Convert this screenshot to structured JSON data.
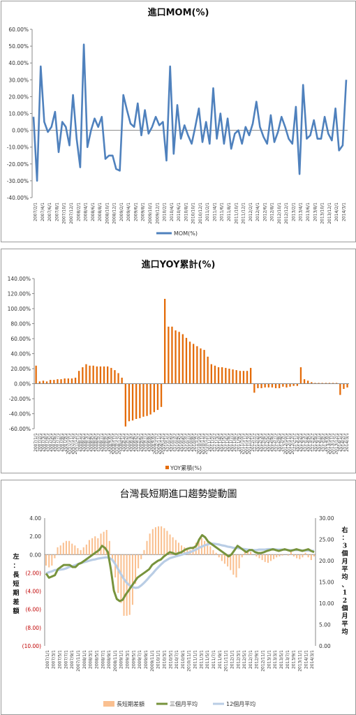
{
  "chart_data": [
    {
      "type": "line",
      "title": "進口MOM(%)",
      "ylim": [
        -40,
        60
      ],
      "y_ticks": [
        "60.00%",
        "50.00%",
        "40.00%",
        "30.00%",
        "20.00%",
        "10.00%",
        "0.00%",
        "-10.00%",
        "-20.00%",
        "-30.00%",
        "-40.00%"
      ],
      "x_tick_labels": [
        "2007/2/1",
        "2007/4/1",
        "2007/6/1",
        "2007/8/1",
        "2007/10/1",
        "2007/12/1",
        "2008/2/1",
        "2008/4/1",
        "2008/6/1",
        "2008/8/1",
        "2008/10/1",
        "2008/12/1",
        "2009/2/1",
        "2009/4/1",
        "2009/6/1",
        "2009/8/1",
        "2009/10/1",
        "2009/12/1",
        "2010/2/1",
        "2010/4/1",
        "2010/6/1",
        "2010/8/1",
        "2010/10/1",
        "2010/12/1",
        "2011/2/1",
        "2011/4/1",
        "2011/6/1",
        "2011/8/1",
        "2011/10/1",
        "2011/12/1",
        "2012/2/1",
        "2012/4/1",
        "2012/6/1",
        "2012/8/1",
        "2012/10/1",
        "2012/12/1",
        "2013/2/1",
        "2013/4/1",
        "2013/6/1",
        "2013/8/1",
        "2013/10/1",
        "2013/12/1",
        "2014/2/1",
        "2014/3/1"
      ],
      "legend_position": "bottom",
      "series": [
        {
          "name": "MOM(%)",
          "color": "#4f81bd",
          "values": [
            8,
            -30,
            38,
            5,
            -1,
            2,
            11,
            -13,
            5,
            2,
            -9,
            21,
            -5,
            -22,
            51,
            -10,
            0,
            7,
            2,
            8,
            -17,
            -15,
            -15,
            -23,
            -24,
            21,
            12,
            4,
            2,
            16,
            -3,
            12,
            -2,
            2,
            8,
            3,
            5,
            -18,
            38,
            -14,
            15,
            -5,
            3,
            -3,
            -8,
            2,
            13,
            -7,
            5,
            -8,
            25,
            -5,
            10,
            -8,
            7,
            -11,
            -2,
            0,
            -8,
            2,
            -3,
            4,
            17,
            2,
            -4,
            -8,
            9,
            -7,
            -1,
            8,
            2,
            -5,
            -8,
            14,
            -26,
            27,
            -5,
            -3,
            6,
            -5,
            -5,
            8,
            -2,
            -6,
            13,
            -12,
            -9,
            30
          ]
        }
      ]
    },
    {
      "type": "bar",
      "title": "進口YOY累計(%)",
      "ylim": [
        -60,
        140
      ],
      "y_ticks": [
        "140.00%",
        "120.00%",
        "100.00%",
        "80.00%",
        "60.00%",
        "40.00%",
        "20.00%",
        "0.00%",
        "-20.00%",
        "-40.00%",
        "-60.00%"
      ],
      "x_tick_labels": [
        "2007/1/1",
        "2007/2/1",
        "2007/3/1",
        "2007/4/1",
        "2007/5/1",
        "2007/6/1",
        "2007/7/1",
        "2007/8/1",
        "2007/9/1",
        "2007/10/1",
        "2007/11/1",
        "2007/12/1",
        "2008/1/1",
        "2008/2/1",
        "2008/3/1",
        "2008/4/1",
        "2008/5/1",
        "2008/6/1",
        "2008/7/1",
        "2008/8/1",
        "2008/9/1",
        "2008/10/1",
        "2008/11/1",
        "2008/12/1",
        "2009/1/1",
        "2009/2/1",
        "2009/3/1",
        "2009/4/1",
        "2009/5/1",
        "2009/6/1",
        "2009/7/1",
        "2009/8/1",
        "2009/9/1",
        "2009/10/1",
        "2009/11/1",
        "2009/12/1",
        "2010/1/1",
        "2010/2/1",
        "2010/3/1",
        "2010/4/1",
        "2010/5/1",
        "2010/6/1",
        "2010/7/1",
        "2010/8/1",
        "2010/9/1",
        "2010/10/1",
        "2010/11/1",
        "2010/12/1",
        "2011/1/1",
        "2011/2/1",
        "2011/3/1",
        "2011/4/1",
        "2011/5/1",
        "2011/6/1",
        "2011/7/1",
        "2011/8/1",
        "2011/9/1",
        "2011/10/1",
        "2011/11/1",
        "2011/12/1",
        "2012/1/1",
        "2012/2/1",
        "2012/3/1",
        "2012/4/1",
        "2012/5/1",
        "2012/6/1",
        "2012/7/1",
        "2012/8/1",
        "2012/9/1",
        "2012/10/1",
        "2012/11/1",
        "2012/12/1",
        "2013/1/1",
        "2013/2/1",
        "2013/3/1",
        "2013/4/1",
        "2013/5/1",
        "2013/6/1",
        "2013/7/1",
        "2013/8/1",
        "2013/9/1",
        "2013/10/1",
        "2013/11/1",
        "2013/12/1",
        "2014/1/1",
        "2014/2/1",
        "2014/3/1"
      ],
      "legend_position": "bottom",
      "series": [
        {
          "name": "YOY累積(%)",
          "color": "#e46c0a",
          "values": [
            24,
            3,
            4,
            3,
            5,
            5,
            6,
            6,
            7,
            7,
            7,
            8,
            17,
            22,
            26,
            24,
            24,
            23,
            23,
            23,
            23,
            21,
            18,
            14,
            8,
            -57,
            -50,
            -49,
            -47,
            -46,
            -44,
            -43,
            -41,
            -38,
            -35,
            -31,
            113,
            76,
            76,
            71,
            69,
            66,
            61,
            56,
            53,
            50,
            47,
            45,
            36,
            26,
            24,
            22,
            22,
            21,
            20,
            19,
            18,
            17,
            17,
            17,
            21,
            -12,
            -6,
            -6,
            -5,
            -5,
            -5,
            -6,
            -6,
            -4,
            -5,
            -4,
            -3,
            -3,
            22,
            6,
            4,
            2,
            1,
            1,
            1,
            1,
            1,
            1,
            1,
            -15,
            -7,
            -5
          ]
        }
      ]
    },
    {
      "type": "bar",
      "title": "台灣長短期進口趨勢變動圖",
      "left_axis_label": "左：長短期差額",
      "right_axis_label": "右：3個月平均、12個月平均",
      "ylim_left": [
        -10,
        4
      ],
      "ylim_right": [
        0,
        30
      ],
      "left_ticks": [
        "4.00",
        "2.00",
        "0.00",
        "(2.00)",
        "(4.00)",
        "(6.00)",
        "(8.00)",
        "(10.00)"
      ],
      "right_ticks": [
        "30.00",
        "25.00",
        "20.00",
        "15.00",
        "10.00",
        "5.00",
        "0.00"
      ],
      "x_tick_labels": [
        "2007/1/1",
        "2007/3/1",
        "2007/5/1",
        "2007/7/1",
        "2007/9/1",
        "2007/11/1",
        "2008/1/1",
        "2008/3/1",
        "2008/5/1",
        "2008/7/1",
        "2008/9/1",
        "2008/11/1",
        "2009/1/1",
        "2009/3/1",
        "2009/5/1",
        "2009/7/1",
        "2009/9/1",
        "2009/11/1",
        "2010/1/1",
        "2010/3/1",
        "2010/5/1",
        "2010/7/1",
        "2010/9/1",
        "2010/11/1",
        "2011/1/1",
        "2011/3/1",
        "2011/5/1",
        "2011/7/1",
        "2011/9/1",
        "2011/11/1",
        "2012/1/1",
        "2012/3/1",
        "2012/5/1",
        "2012/7/1",
        "2012/9/1",
        "2012/11/1",
        "2013/1/1",
        "2013/3/1",
        "2013/5/1",
        "2013/7/1",
        "2013/9/1",
        "2013/11/1",
        "2014/1/1",
        "2014/3/1"
      ],
      "legend_position": "bottom",
      "series": [
        {
          "name": "長短期差額",
          "color": "#fac090",
          "axis": "left",
          "values": [
            -1.2,
            -1.4,
            -1.2,
            -0.4,
            0.8,
            1.0,
            1.3,
            1.5,
            1.5,
            1.2,
            1.0,
            0.7,
            0.5,
            0.8,
            1.1,
            1.6,
            1.8,
            2.0,
            1.8,
            2.3,
            2.5,
            2.7,
            1.5,
            -0.5,
            -2.5,
            -4.2,
            -5.3,
            -6.7,
            -6.7,
            -6.6,
            -5.5,
            -3.2,
            -1.5,
            -0.5,
            0.5,
            1.5,
            2.3,
            2.8,
            3.0,
            3.1,
            3.1,
            2.9,
            2.6,
            2.2,
            1.9,
            1.6,
            1.3,
            1.0,
            0.8,
            0.6,
            0.5,
            0.9,
            1.3,
            1.7,
            1.8,
            1.5,
            1.3,
            0.9,
            0.5,
            0.2,
            -0.3,
            -0.7,
            -1.0,
            -1.3,
            -1.7,
            -2.2,
            -2.5,
            -1.5,
            -0.3,
            0.4,
            0.6,
            0.3,
            0.0,
            -0.2,
            -0.4,
            -0.6,
            -0.8,
            -0.9,
            -0.7,
            -0.5,
            -0.3,
            -0.2,
            -0.1,
            0.0,
            -0.1,
            0.3,
            -0.2,
            -0.4,
            -0.5,
            -0.3,
            0.2,
            -0.3,
            -0.6,
            -0.2
          ]
        },
        {
          "name": "三個月平均",
          "color": "#77933c",
          "axis": "right",
          "values": [
            17,
            16,
            16.3,
            16.6,
            18,
            18.5,
            19,
            19,
            19,
            18.5,
            18.5,
            19.2,
            19.5,
            20,
            20.5,
            21,
            21.5,
            22,
            22.5,
            23.5,
            23,
            22,
            18,
            13,
            11,
            10.5,
            10.8,
            12,
            13,
            14,
            15,
            16,
            16.5,
            17,
            17.5,
            18,
            19,
            19.5,
            20,
            20.3,
            21,
            21.5,
            22,
            21.8,
            21.5,
            21.8,
            22,
            22.5,
            22.8,
            23,
            23,
            23.5,
            25,
            26,
            25.5,
            24.5,
            24,
            23.5,
            23,
            22.5,
            22,
            21.5,
            21,
            21.5,
            22.5,
            23.5,
            23,
            22.5,
            22,
            22.5,
            22.5,
            22,
            21.8,
            21.8,
            22,
            22.3,
            22.5,
            22.7,
            22.5,
            22.3,
            22.5,
            22.7,
            22.5,
            22.3,
            22.5,
            22.7,
            22.5,
            22.3,
            22.5,
            22.7,
            22.3,
            22
          ]
        },
        {
          "name": "12個月平均",
          "color": "#b9cde5",
          "axis": "right",
          "values": [
            17,
            17.3,
            17.5,
            17.8,
            17.8,
            17.9,
            18,
            18.2,
            18.5,
            18.7,
            18.9,
            19.2,
            19.4,
            19.6,
            19.8,
            20,
            20.2,
            20.3,
            20.5,
            20.6,
            20.7,
            20.8,
            20.6,
            20.2,
            19.2,
            18,
            16.8,
            15.7,
            14.8,
            14.2,
            13.8,
            13.6,
            13.7,
            14.2,
            14.8,
            15.5,
            16.3,
            17,
            17.8,
            18.5,
            19.2,
            19.8,
            20.2,
            20.6,
            20.8,
            21,
            21.2,
            21.4,
            21.6,
            21.8,
            22,
            22.3,
            22.6,
            23,
            23.3,
            23.6,
            23.8,
            24,
            24,
            23.9,
            23.8,
            23.6,
            23.5,
            23.3,
            23.2,
            23,
            23,
            22.9,
            22.8,
            22.7,
            22.6,
            22.5,
            22.5,
            22.5,
            22.6,
            22.6,
            22.6,
            22.7,
            22.7,
            22.7,
            22.6,
            22.6,
            22.6,
            22.6,
            22.5,
            22.5,
            22.5,
            22.5,
            22.5,
            22.4,
            22.4,
            22.4,
            22.3,
            22.3
          ]
        }
      ]
    }
  ]
}
